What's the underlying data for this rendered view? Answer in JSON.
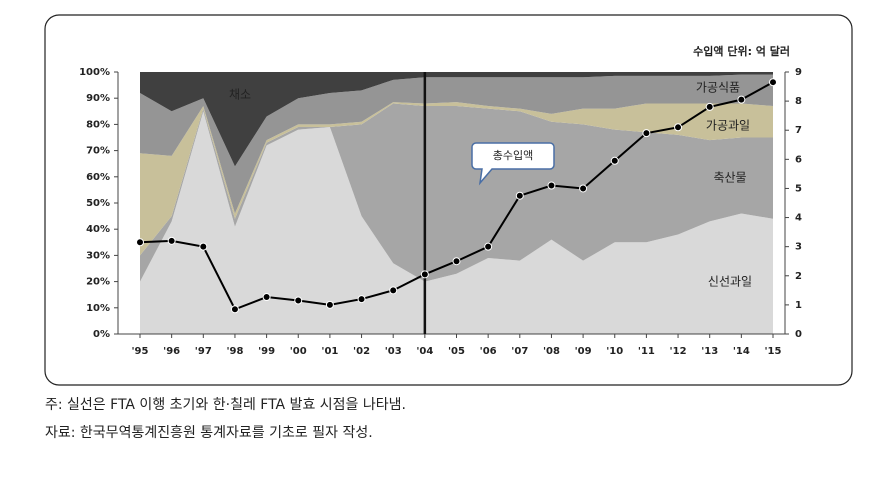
{
  "chart_data": {
    "type": "stacked_area_line",
    "unit_label": "수입액 단위: 억 달러",
    "callout": "총수입액",
    "vline": "'04",
    "categories": [
      "'95",
      "'96",
      "'97",
      "'98",
      "'99",
      "'00",
      "'01",
      "'02",
      "'03",
      "'04",
      "'05",
      "'06",
      "'07",
      "'08",
      "'09",
      "'10",
      "'11",
      "'12",
      "'13",
      "'14",
      "'15"
    ],
    "series": [
      {
        "name": "신선과일",
        "color": "#d9d9d9",
        "values": [
          20,
          43,
          85,
          41,
          72,
          78,
          79,
          45,
          27,
          20,
          23,
          29,
          28,
          36,
          28,
          35,
          35,
          38,
          43,
          46,
          44
        ]
      },
      {
        "name": "축산물",
        "color": "#a6a6a6",
        "values": [
          10,
          2,
          1,
          3,
          1,
          1,
          0,
          35,
          61,
          67,
          64,
          57,
          57,
          45,
          52,
          43,
          42,
          38,
          31,
          29,
          31
        ]
      },
      {
        "name": "가공과일",
        "color": "#c8c09a",
        "values": [
          39,
          23,
          1,
          2,
          1,
          1,
          1,
          1,
          0.5,
          1,
          1.5,
          1,
          1,
          3,
          6,
          8,
          11,
          12,
          14,
          13,
          12
        ]
      },
      {
        "name": "가공식품",
        "color": "#959595",
        "values": [
          23,
          17,
          3,
          18,
          9,
          10,
          12,
          12,
          8.5,
          10,
          9.5,
          11,
          12,
          14,
          12,
          12.5,
          10.5,
          10.5,
          10.5,
          11,
          12
        ]
      },
      {
        "name": "채소",
        "color": "#404040",
        "values": [
          8,
          15,
          10,
          36,
          17,
          10,
          8,
          7,
          3,
          2,
          2,
          2,
          2,
          2,
          2,
          1.5,
          1.5,
          1.5,
          1.5,
          1,
          1
        ]
      },
      {
        "name": "총수입액",
        "color": "#000000",
        "axis": "y2",
        "values": [
          3.15,
          3.2,
          3.0,
          0.85,
          1.27,
          1.15,
          1.0,
          1.2,
          1.5,
          2.05,
          2.5,
          3.0,
          4.75,
          5.1,
          5.0,
          5.95,
          6.9,
          7.1,
          7.8,
          8.05,
          8.65
        ]
      }
    ],
    "ylim": [
      0,
      100
    ],
    "yticks": [
      {
        "value": 0,
        "label": "0%"
      },
      {
        "value": 10,
        "label": "10%"
      },
      {
        "value": 20,
        "label": "20%"
      },
      {
        "value": 30,
        "label": "30%"
      },
      {
        "value": 40,
        "label": "40%"
      },
      {
        "value": 50,
        "label": "50%"
      },
      {
        "value": 60,
        "label": "60%"
      },
      {
        "value": 70,
        "label": "70%"
      },
      {
        "value": 80,
        "label": "80%"
      },
      {
        "value": 90,
        "label": "90%"
      },
      {
        "value": 100,
        "label": "100%"
      }
    ],
    "y2lim": [
      0,
      9
    ],
    "y2ticks": [
      0,
      1,
      2,
      3,
      4,
      5,
      6,
      7,
      8,
      9
    ]
  },
  "notes": [
    "주: 실선은 FTA 이행 초기와 한·칠레 FTA 발효 시점을 나타냄.",
    "자료: 한국무역통계진흥원 통계자료를 기초로 필자 작성."
  ]
}
